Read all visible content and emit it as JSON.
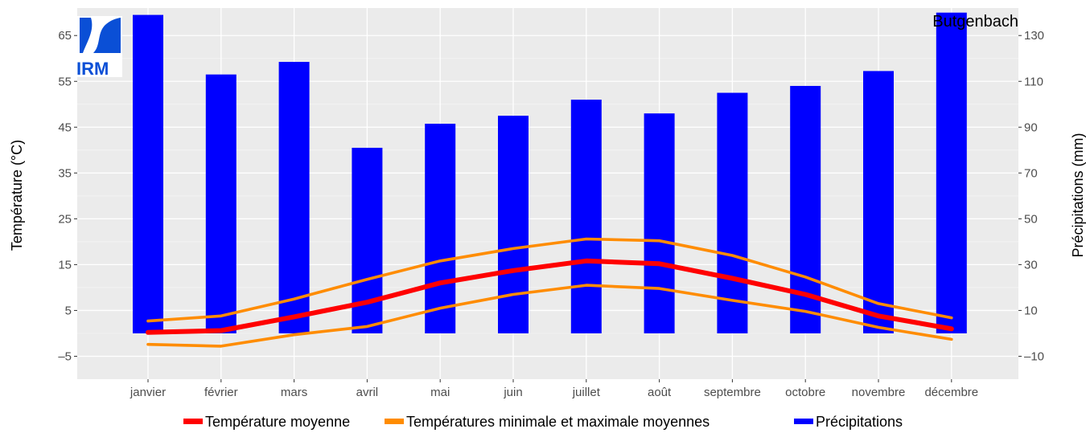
{
  "chart_data": {
    "type": "bar",
    "station": "Butgenbach",
    "logo_text": "IRM",
    "categories": [
      "janvier",
      "février",
      "mars",
      "avril",
      "mai",
      "juin",
      "juillet",
      "août",
      "septembre",
      "octobre",
      "novembre",
      "décembre"
    ],
    "ylabel_left": "Température (°C)",
    "ylabel_right": "Précipitations (mm)",
    "ylim_left": [
      -10,
      71
    ],
    "yticks_left": [
      -5,
      5,
      15,
      25,
      35,
      45,
      55,
      65
    ],
    "ylim_right": [
      -20,
      142
    ],
    "yticks_right": [
      -10,
      10,
      30,
      50,
      70,
      90,
      110,
      130
    ],
    "series": [
      {
        "name": "Précipitations",
        "kind": "bar",
        "axis": "right",
        "color": "#0000ff",
        "values": [
          139,
          113,
          118.5,
          81,
          91.5,
          95,
          102,
          96,
          105,
          108,
          114.5,
          140
        ]
      },
      {
        "name": "Température moyenne",
        "kind": "line",
        "axis": "left",
        "color": "#ff0000",
        "values": [
          0.2,
          0.6,
          3.6,
          6.8,
          11,
          13.7,
          15.8,
          15.2,
          12,
          8.5,
          3.8,
          1
        ]
      },
      {
        "name": "Températures minimale et maximale moyennes",
        "kind": "line",
        "axis": "left",
        "color": "#ff8c00",
        "values": [
          2.7,
          3.8,
          7.5,
          11.8,
          15.8,
          18.5,
          20.6,
          20.2,
          17,
          12.3,
          6.5,
          3.4
        ]
      },
      {
        "name": "",
        "kind": "line",
        "axis": "left",
        "color": "#ff8c00",
        "values": [
          -2.4,
          -2.8,
          -0.3,
          1.5,
          5.5,
          8.5,
          10.5,
          9.8,
          7.2,
          4.8,
          1.3,
          -1.3
        ]
      }
    ],
    "legend": [
      {
        "label": "Température moyenne",
        "color": "#ff0000"
      },
      {
        "label": "Températures minimale et maximale moyennes",
        "color": "#ff8c00"
      },
      {
        "label": "Précipitations",
        "color": "#0000ff"
      }
    ],
    "legend_position": "bottom",
    "grid": true
  }
}
